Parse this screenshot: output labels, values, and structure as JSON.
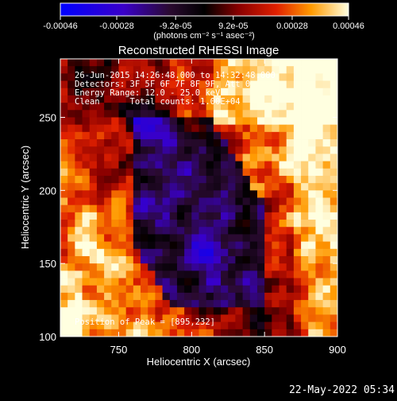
{
  "chart_data": {
    "type": "heatmap",
    "title": "Reconstructed RHESSI Image",
    "xlabel": "Heliocentric X (arcsec)",
    "ylabel": "Heliocentric Y (arcsec)",
    "xlim": [
      710,
      900
    ],
    "ylim": [
      100,
      290
    ],
    "x_ticks": [
      750,
      800,
      850,
      900
    ],
    "y_ticks": [
      100,
      150,
      200,
      250
    ],
    "colorbar": {
      "range": [
        -0.00046,
        0.00046
      ],
      "tick_labels": [
        "-0.00046",
        "-0.00028",
        "-9.2e-05",
        "9.2e-05",
        "0.00028",
        "0.00046"
      ],
      "tick_values": [
        -0.00046,
        -0.00028,
        -9.2e-05,
        9.2e-05,
        0.00028,
        0.00046
      ],
      "unit_label": "(photons cm⁻² s⁻¹ asec⁻²)"
    },
    "annotations": [
      "26-Jun-2015 14:26:48.000 to 14:32:48.000",
      "Detectors: 3F 5F 6F 7F 8F 9F, Att 0",
      "Energy Range: 12.0 - 25.0 keV",
      "Clean      Total counts: 1.00E+04"
    ],
    "peak_label": "Position of Peak = [895,232]",
    "peak": [
      895,
      232
    ]
  },
  "footer": {
    "timestamp": "22-May-2022 05:34"
  }
}
